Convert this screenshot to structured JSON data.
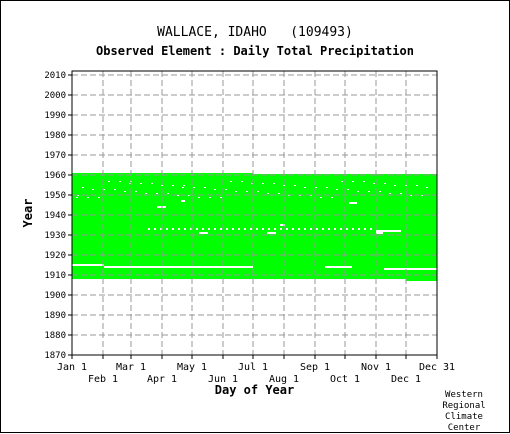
{
  "chart_data": {
    "type": "bar",
    "title": "WALLACE, IDAHO   (109493)",
    "subtitle": "Observed Element : Daily Total Precipitation",
    "xlabel": "Day of Year",
    "ylabel": "Year",
    "xlim": [
      1,
      366
    ],
    "ylim": [
      1870,
      2012
    ],
    "x_ticks_top_row": [
      {
        "label": "Jan 1",
        "day": 1
      },
      {
        "label": "Mar 1",
        "day": 60
      },
      {
        "label": "May 1",
        "day": 121
      },
      {
        "label": "Jul 1",
        "day": 182
      },
      {
        "label": "Sep 1",
        "day": 244
      },
      {
        "label": "Nov 1",
        "day": 305
      },
      {
        "label": "Dec 31",
        "day": 366
      }
    ],
    "x_ticks_bottom_row": [
      {
        "label": "Feb 1",
        "day": 32
      },
      {
        "label": "Apr 1",
        "day": 91
      },
      {
        "label": "Jun 1",
        "day": 152
      },
      {
        "label": "Aug 1",
        "day": 213
      },
      {
        "label": "Oct 1",
        "day": 274
      },
      {
        "label": "Dec 1",
        "day": 335
      }
    ],
    "y_ticks": [
      "2010",
      "2000",
      "1990",
      "1980",
      "1970",
      "1960",
      "1950",
      "1940",
      "1930",
      "1920",
      "1910",
      "1900",
      "1890",
      "1880",
      "1870"
    ],
    "grid": true,
    "series_color": "#00ff00",
    "coverage": [
      {
        "day_start": 1,
        "day_end": 182,
        "year_start": 1908,
        "year_end": 1961
      },
      {
        "day_start": 182,
        "day_end": 335,
        "year_start": 1908,
        "year_end": 1960.5
      },
      {
        "day_start": 335,
        "day_end": 366,
        "year_start": 1907,
        "year_end": 1960.5
      }
    ],
    "missing_year_lines": [
      {
        "year": 1914,
        "day_start": 33,
        "day_end": 182
      },
      {
        "year": 1914,
        "day_start": 254,
        "day_end": 281
      },
      {
        "year": 1913,
        "day_start": 313,
        "day_end": 366
      },
      {
        "year": 1915,
        "day_start": 1,
        "day_end": 33
      },
      {
        "year": 1944,
        "day_start": 86,
        "day_end": 95
      },
      {
        "year": 1947,
        "day_start": 110,
        "day_end": 114
      },
      {
        "year": 1931,
        "day_start": 128,
        "day_end": 137
      },
      {
        "year": 1931,
        "day_start": 196,
        "day_end": 205
      },
      {
        "year": 1935,
        "day_start": 209,
        "day_end": 214
      },
      {
        "year": 1946,
        "day_start": 278,
        "day_end": 286
      },
      {
        "year": 1932,
        "day_start": 305,
        "day_end": 330
      },
      {
        "year": 1931,
        "day_start": 305,
        "day_end": 312
      },
      {
        "year": 1933,
        "day_start": 77,
        "day_end": 302
      }
    ]
  },
  "credit": [
    "Western",
    "Regional",
    "Climate",
    "Center"
  ]
}
